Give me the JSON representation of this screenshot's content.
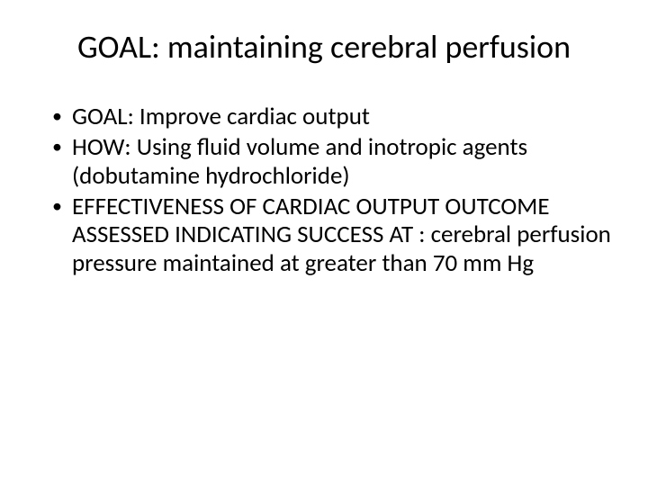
{
  "title": "GOAL: maintaining cerebral perfusion",
  "bullets": [
    "GOAL: Improve cardiac output",
    "HOW: Using fluid volume and inotropic agents (dobutamine hydrochloride)",
    "EFFECTIVENESS OF CARDIAC OUTPUT OUTCOME ASSESSED INDICATING SUCCESS AT : cerebral perfusion pressure maintained at greater than 70 mm Hg"
  ],
  "colors": {
    "background": "#ffffff",
    "text": "#000000"
  },
  "typography": {
    "title_fontsize_pt": 32,
    "body_fontsize_pt": 24,
    "font_family": "Calibri"
  }
}
